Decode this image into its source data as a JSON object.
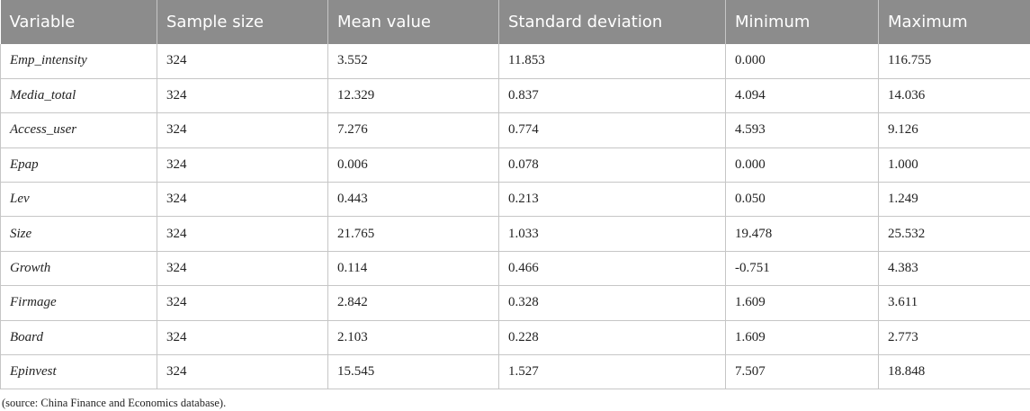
{
  "table": {
    "headers": [
      "Variable",
      "Sample size",
      "Mean value",
      "Standard deviation",
      "Minimum",
      "Maximum"
    ],
    "rows": [
      [
        "Emp_intensity",
        "324",
        "3.552",
        "11.853",
        "0.000",
        "116.755"
      ],
      [
        "Media_total",
        "324",
        "12.329",
        "0.837",
        "4.094",
        "14.036"
      ],
      [
        "Access_user",
        "324",
        "7.276",
        "0.774",
        "4.593",
        "9.126"
      ],
      [
        "Epap",
        "324",
        "0.006",
        "0.078",
        "0.000",
        "1.000"
      ],
      [
        "Lev",
        "324",
        "0.443",
        "0.213",
        "0.050",
        "1.249"
      ],
      [
        "Size",
        "324",
        "21.765",
        "1.033",
        "19.478",
        "25.532"
      ],
      [
        "Growth",
        "324",
        "0.114",
        "0.466",
        "-0.751",
        "4.383"
      ],
      [
        "Firmage",
        "324",
        "2.842",
        "0.328",
        "1.609",
        "3.611"
      ],
      [
        "Board",
        "324",
        "2.103",
        "0.228",
        "1.609",
        "2.773"
      ],
      [
        "Epinvest",
        "324",
        "15.545",
        "1.527",
        "7.507",
        "18.848"
      ]
    ]
  },
  "footnote": "(source: China Finance and Economics database).",
  "colors": {
    "header_bg": "#8c8c8c",
    "header_text": "#ffffff",
    "border": "#c6c6c6"
  }
}
